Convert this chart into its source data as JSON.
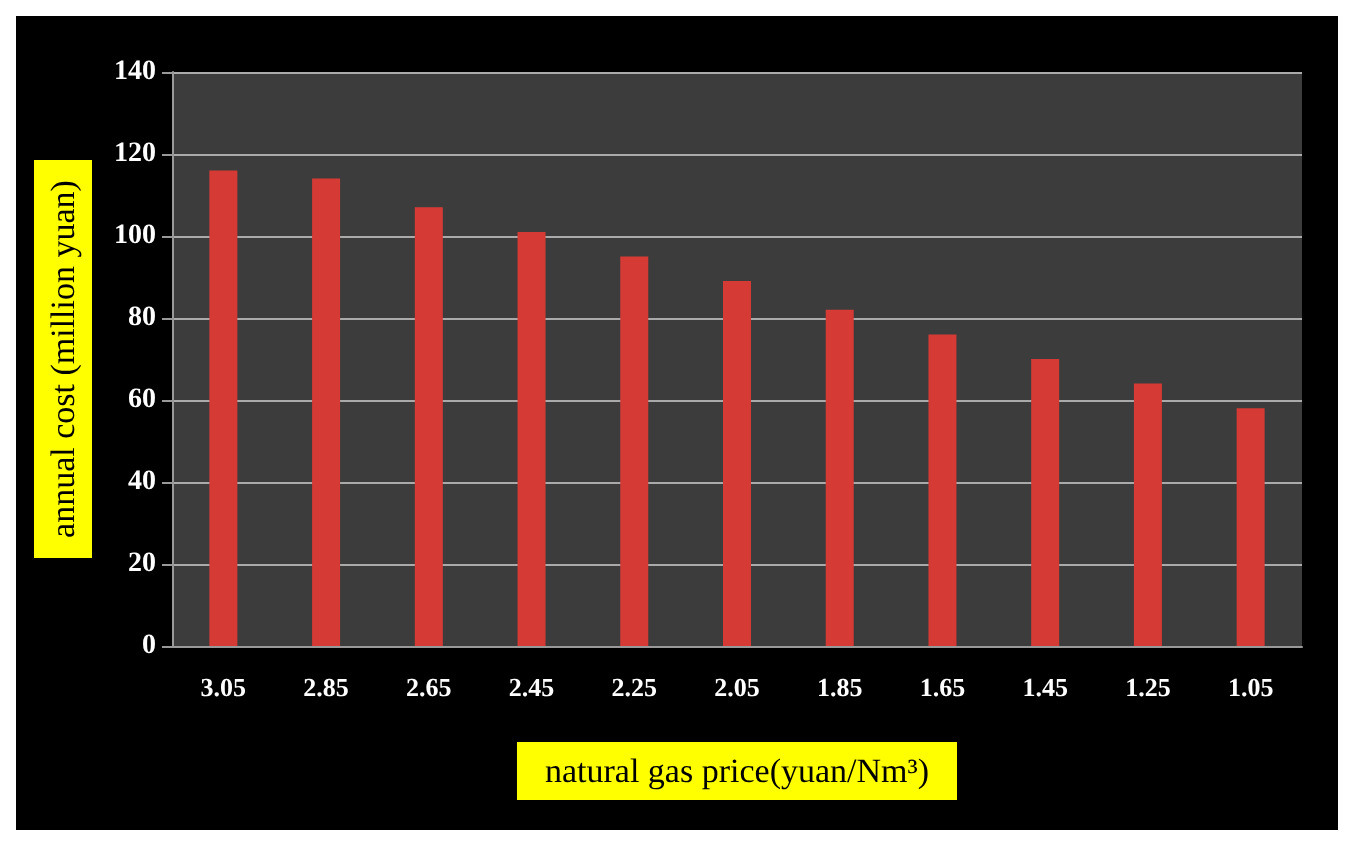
{
  "chart_data": {
    "type": "bar",
    "xlabel": "natural gas price(yuan/Nm³)",
    "ylabel": "annual cost (million yuan)",
    "categories": [
      "3.05",
      "2.85",
      "2.65",
      "2.45",
      "2.25",
      "2.05",
      "1.85",
      "1.65",
      "1.45",
      "1.25",
      "1.05"
    ],
    "values": [
      116,
      114,
      107,
      101,
      95,
      89,
      82,
      76,
      70,
      64,
      58
    ],
    "color": "#d63a35",
    "ylim": [
      0,
      140
    ],
    "yticks": [
      0,
      20,
      40,
      60,
      80,
      100,
      120,
      140
    ],
    "grid": "y"
  }
}
